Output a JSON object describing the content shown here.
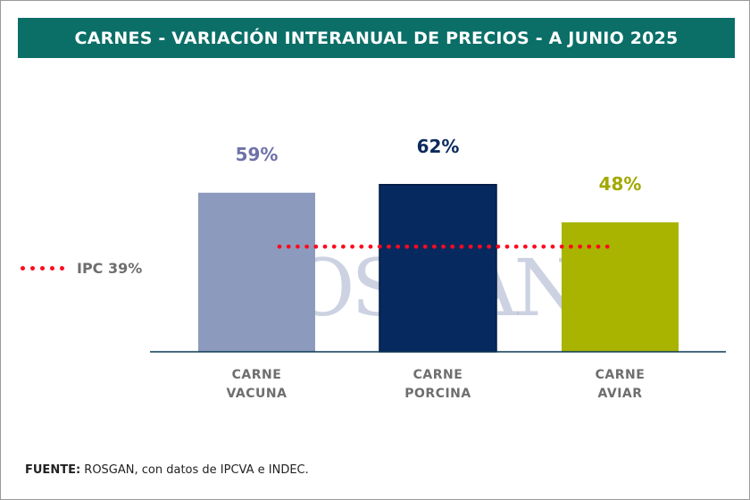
{
  "chart_data": {
    "type": "bar",
    "title": "CARNES - VARIACIÓN INTERANUAL DE PRECIOS - A JUNIO 2025",
    "categories": [
      [
        "CARNE",
        "VACUNA"
      ],
      [
        "CARNE",
        "PORCINA"
      ],
      [
        "CARNE",
        "AVIAR"
      ]
    ],
    "values": [
      59,
      62,
      48
    ],
    "value_labels": [
      "59%",
      "62%",
      "48%"
    ],
    "bar_colors": [
      "#8c9bbd",
      "#062a5f",
      "#a9b400"
    ],
    "label_colors": [
      "#6f72a8",
      "#0d2a5c",
      "#a3a800"
    ],
    "reference_line": {
      "name": "IPC 39%",
      "value": 39,
      "color": "#ff0a1e",
      "style": "dotted"
    },
    "ylim": [
      0,
      70
    ],
    "grid": false,
    "legend_placement": "left"
  },
  "title_bg": "#0b6f68",
  "watermark": "ROSGAN",
  "source": {
    "label": "FUENTE:",
    "text": " ROSGAN, con datos de IPCVA e INDEC."
  }
}
